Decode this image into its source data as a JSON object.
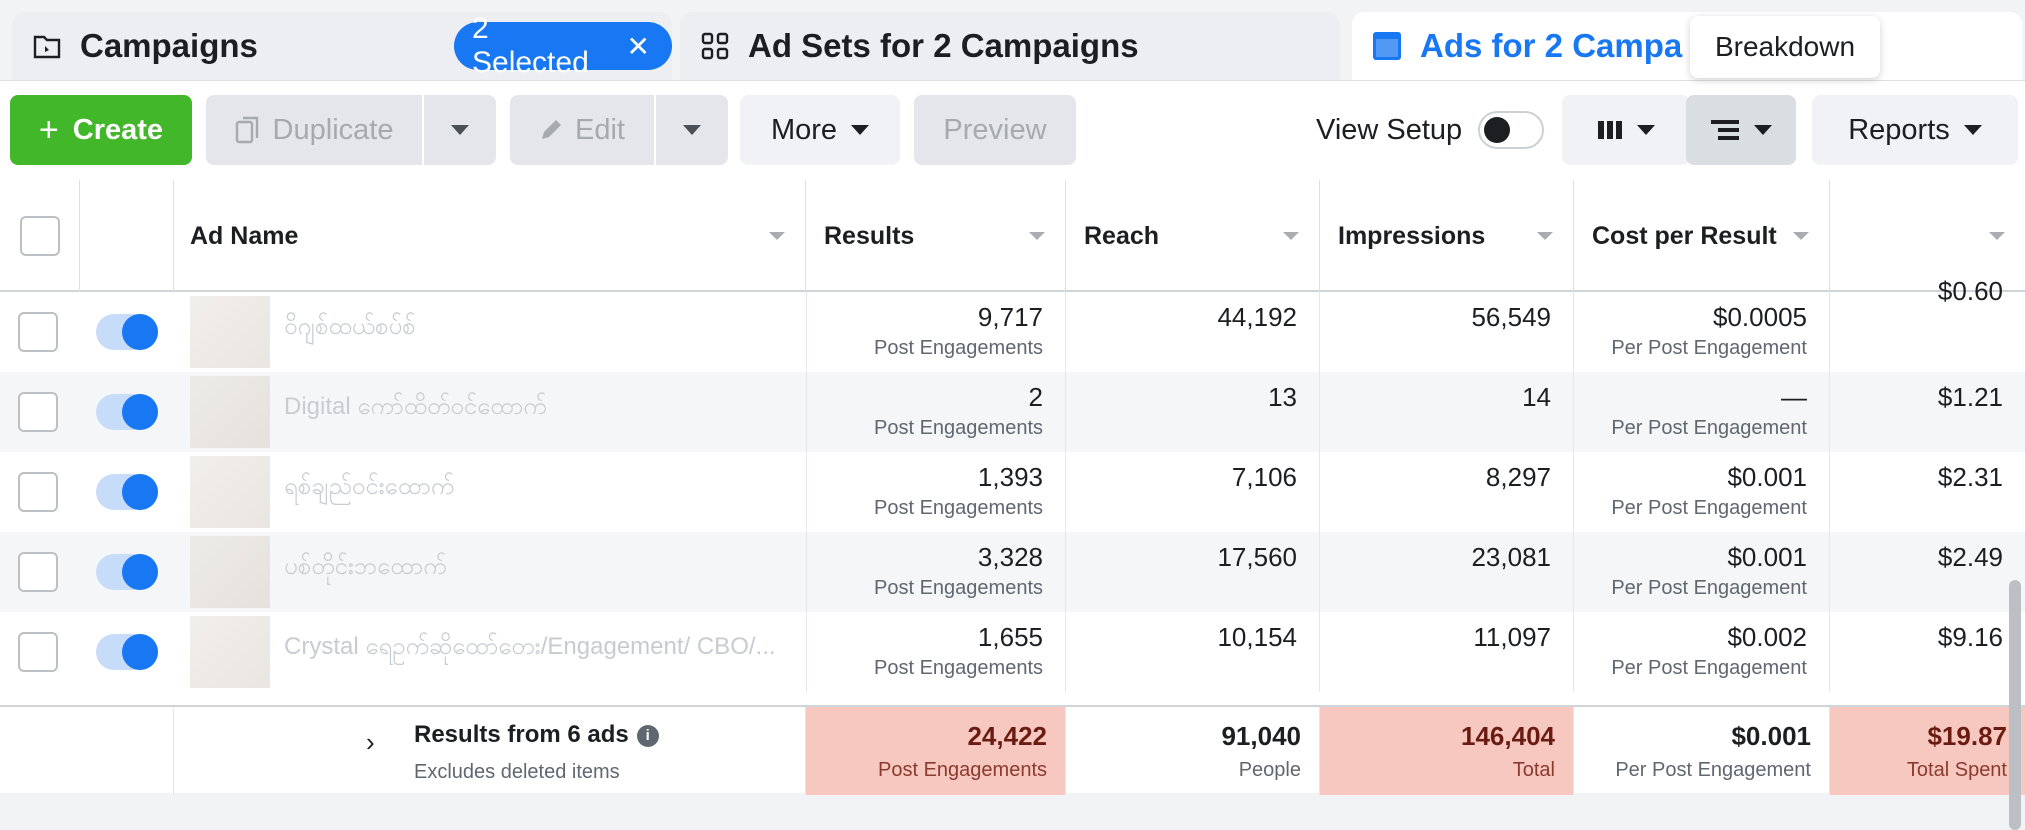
{
  "tabs": {
    "campaigns": "Campaigns",
    "selected": "2 Selected",
    "adsets": "Ad Sets for 2 Campaigns",
    "ads": "Ads for 2 Campa"
  },
  "tooltip": "Breakdown",
  "toolbar": {
    "create": "Create",
    "duplicate": "Duplicate",
    "edit": "Edit",
    "more": "More",
    "preview": "Preview",
    "view_setup": "View Setup",
    "reports": "Reports"
  },
  "columns": {
    "ad_name": "Ad Name",
    "results": "Results",
    "reach": "Reach",
    "impressions": "Impressions",
    "cost": "Cost per Result"
  },
  "rows": [
    {
      "name": "ဝိဂျစ်ထယ်စပ်စ်",
      "results": "9,717",
      "results_sub": "Post Engagements",
      "reach": "44,192",
      "impressions": "56,549",
      "cost": "$0.0005",
      "cost_sub": "Per Post Engagement",
      "spent": "$0.60"
    },
    {
      "name": "Digital ကော်ထိတ်ဝင်ထောက်",
      "results": "2",
      "results_sub": "Post Engagements",
      "reach": "13",
      "impressions": "14",
      "cost": "—",
      "cost_sub": "Per Post Engagement",
      "spent": "$1.21"
    },
    {
      "name": "ရစ်ချည်ဝင်းထောက်",
      "results": "1,393",
      "results_sub": "Post Engagements",
      "reach": "7,106",
      "impressions": "8,297",
      "cost": "$0.001",
      "cost_sub": "Per Post Engagement",
      "spent": "$2.31"
    },
    {
      "name": "ပစ်တိုင်းဘထောက်",
      "results": "3,328",
      "results_sub": "Post Engagements",
      "reach": "17,560",
      "impressions": "23,081",
      "cost": "$0.001",
      "cost_sub": "Per Post Engagement",
      "spent": "$2.49"
    },
    {
      "name": "Crystal ရေဥက်ဆိုထော်တေး/Engagement/ CBO/...",
      "results": "1,655",
      "results_sub": "Post Engagements",
      "reach": "10,154",
      "impressions": "11,097",
      "cost": "$0.002",
      "cost_sub": "Per Post Engagement",
      "spent": "$9.16"
    }
  ],
  "totals": {
    "title": "Results from 6 ads",
    "subtitle": "Excludes deleted items",
    "results": "24,422",
    "results_sub": "Post Engagements",
    "reach": "91,040",
    "reach_sub": "People",
    "impressions": "146,404",
    "impressions_sub": "Total",
    "cost": "$0.001",
    "cost_sub": "Per Post Engagement",
    "spent": "$19.87",
    "spent_sub": "Total Spent"
  }
}
